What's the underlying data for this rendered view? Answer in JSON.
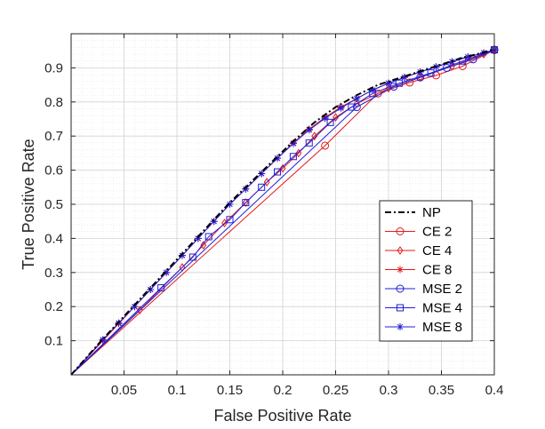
{
  "chart_data": {
    "type": "line",
    "title": "",
    "xlabel": "False Positive Rate",
    "ylabel": "True Positive Rate",
    "xlim": [
      0,
      0.4
    ],
    "ylim": [
      0,
      1
    ],
    "xticks": [
      0.05,
      0.1,
      0.15,
      0.2,
      0.25,
      0.3,
      0.35,
      0.4
    ],
    "yticks": [
      0.1,
      0.2,
      0.3,
      0.4,
      0.5,
      0.6,
      0.7,
      0.8,
      0.9
    ],
    "xtick_labels": [
      "0.05",
      "0.1",
      "0.15",
      "0.2",
      "0.25",
      "0.3",
      "0.35",
      "0.4"
    ],
    "ytick_labels": [
      "0.1",
      "0.2",
      "0.3",
      "0.4",
      "0.5",
      "0.6",
      "0.7",
      "0.8",
      "0.9"
    ],
    "grid": true,
    "minor_grid": true,
    "legend_position": "bottom-right",
    "series": [
      {
        "name": "NP",
        "color": "#000000",
        "line_style": "dash-dot",
        "marker": "none",
        "points": [
          [
            0,
            0
          ],
          [
            0.03,
            0.105
          ],
          [
            0.06,
            0.205
          ],
          [
            0.09,
            0.305
          ],
          [
            0.12,
            0.405
          ],
          [
            0.15,
            0.505
          ],
          [
            0.17,
            0.565
          ],
          [
            0.19,
            0.625
          ],
          [
            0.21,
            0.685
          ],
          [
            0.23,
            0.74
          ],
          [
            0.25,
            0.785
          ],
          [
            0.27,
            0.82
          ],
          [
            0.29,
            0.85
          ],
          [
            0.31,
            0.87
          ],
          [
            0.33,
            0.89
          ],
          [
            0.35,
            0.91
          ],
          [
            0.37,
            0.93
          ],
          [
            0.39,
            0.945
          ],
          [
            0.4,
            0.955
          ]
        ]
      },
      {
        "name": "CE 2",
        "color": "#e31a1c",
        "line_style": "solid",
        "marker": "circle",
        "points": [
          [
            0,
            0
          ],
          [
            0.24,
            0.672
          ],
          [
            0.29,
            0.825
          ],
          [
            0.32,
            0.857
          ],
          [
            0.345,
            0.878
          ],
          [
            0.37,
            0.905
          ],
          [
            0.4,
            0.952
          ]
        ]
      },
      {
        "name": "CE 4",
        "color": "#e31a1c",
        "line_style": "solid",
        "marker": "diamond",
        "points": [
          [
            0,
            0
          ],
          [
            0.065,
            0.19
          ],
          [
            0.105,
            0.315
          ],
          [
            0.125,
            0.38
          ],
          [
            0.145,
            0.445
          ],
          [
            0.165,
            0.505
          ],
          [
            0.185,
            0.565
          ],
          [
            0.2,
            0.605
          ],
          [
            0.215,
            0.65
          ],
          [
            0.23,
            0.7
          ],
          [
            0.25,
            0.755
          ],
          [
            0.27,
            0.795
          ],
          [
            0.3,
            0.84
          ],
          [
            0.33,
            0.872
          ],
          [
            0.36,
            0.905
          ],
          [
            0.39,
            0.94
          ],
          [
            0.4,
            0.953
          ]
        ]
      },
      {
        "name": "CE 8",
        "color": "#e31a1c",
        "line_style": "solid",
        "marker": "star",
        "points": [
          [
            0,
            0
          ],
          [
            0.03,
            0.1
          ],
          [
            0.045,
            0.15
          ],
          [
            0.06,
            0.2
          ],
          [
            0.075,
            0.25
          ],
          [
            0.09,
            0.3
          ],
          [
            0.105,
            0.35
          ],
          [
            0.12,
            0.4
          ],
          [
            0.135,
            0.45
          ],
          [
            0.15,
            0.5
          ],
          [
            0.165,
            0.545
          ],
          [
            0.18,
            0.59
          ],
          [
            0.195,
            0.635
          ],
          [
            0.21,
            0.68
          ],
          [
            0.225,
            0.72
          ],
          [
            0.24,
            0.755
          ],
          [
            0.255,
            0.785
          ],
          [
            0.27,
            0.81
          ],
          [
            0.285,
            0.835
          ],
          [
            0.3,
            0.855
          ],
          [
            0.315,
            0.872
          ],
          [
            0.33,
            0.888
          ],
          [
            0.345,
            0.903
          ],
          [
            0.36,
            0.918
          ],
          [
            0.375,
            0.932
          ],
          [
            0.39,
            0.944
          ],
          [
            0.4,
            0.952
          ]
        ]
      },
      {
        "name": "MSE 2",
        "color": "#1f1fd6",
        "line_style": "solid",
        "marker": "circle",
        "points": [
          [
            0,
            0
          ],
          [
            0.27,
            0.785
          ],
          [
            0.305,
            0.845
          ],
          [
            0.33,
            0.872
          ],
          [
            0.355,
            0.9
          ],
          [
            0.38,
            0.925
          ],
          [
            0.4,
            0.953
          ]
        ]
      },
      {
        "name": "MSE 4",
        "color": "#1f1fd6",
        "line_style": "solid",
        "marker": "square",
        "points": [
          [
            0,
            0
          ],
          [
            0.085,
            0.255
          ],
          [
            0.115,
            0.345
          ],
          [
            0.13,
            0.405
          ],
          [
            0.15,
            0.455
          ],
          [
            0.165,
            0.505
          ],
          [
            0.18,
            0.55
          ],
          [
            0.195,
            0.595
          ],
          [
            0.21,
            0.64
          ],
          [
            0.225,
            0.68
          ],
          [
            0.245,
            0.74
          ],
          [
            0.265,
            0.785
          ],
          [
            0.285,
            0.825
          ],
          [
            0.31,
            0.855
          ],
          [
            0.34,
            0.885
          ],
          [
            0.37,
            0.92
          ],
          [
            0.4,
            0.953
          ]
        ]
      },
      {
        "name": "MSE 8",
        "color": "#1f1fd6",
        "line_style": "solid",
        "marker": "star",
        "points": [
          [
            0,
            0
          ],
          [
            0.03,
            0.103
          ],
          [
            0.045,
            0.152
          ],
          [
            0.06,
            0.2
          ],
          [
            0.075,
            0.25
          ],
          [
            0.09,
            0.3
          ],
          [
            0.105,
            0.35
          ],
          [
            0.12,
            0.4
          ],
          [
            0.135,
            0.45
          ],
          [
            0.15,
            0.5
          ],
          [
            0.165,
            0.545
          ],
          [
            0.18,
            0.59
          ],
          [
            0.195,
            0.635
          ],
          [
            0.21,
            0.678
          ],
          [
            0.225,
            0.718
          ],
          [
            0.24,
            0.752
          ],
          [
            0.255,
            0.782
          ],
          [
            0.27,
            0.81
          ],
          [
            0.285,
            0.835
          ],
          [
            0.3,
            0.855
          ],
          [
            0.315,
            0.872
          ],
          [
            0.33,
            0.888
          ],
          [
            0.345,
            0.903
          ],
          [
            0.36,
            0.918
          ],
          [
            0.375,
            0.932
          ],
          [
            0.39,
            0.944
          ],
          [
            0.4,
            0.953
          ]
        ]
      }
    ]
  }
}
